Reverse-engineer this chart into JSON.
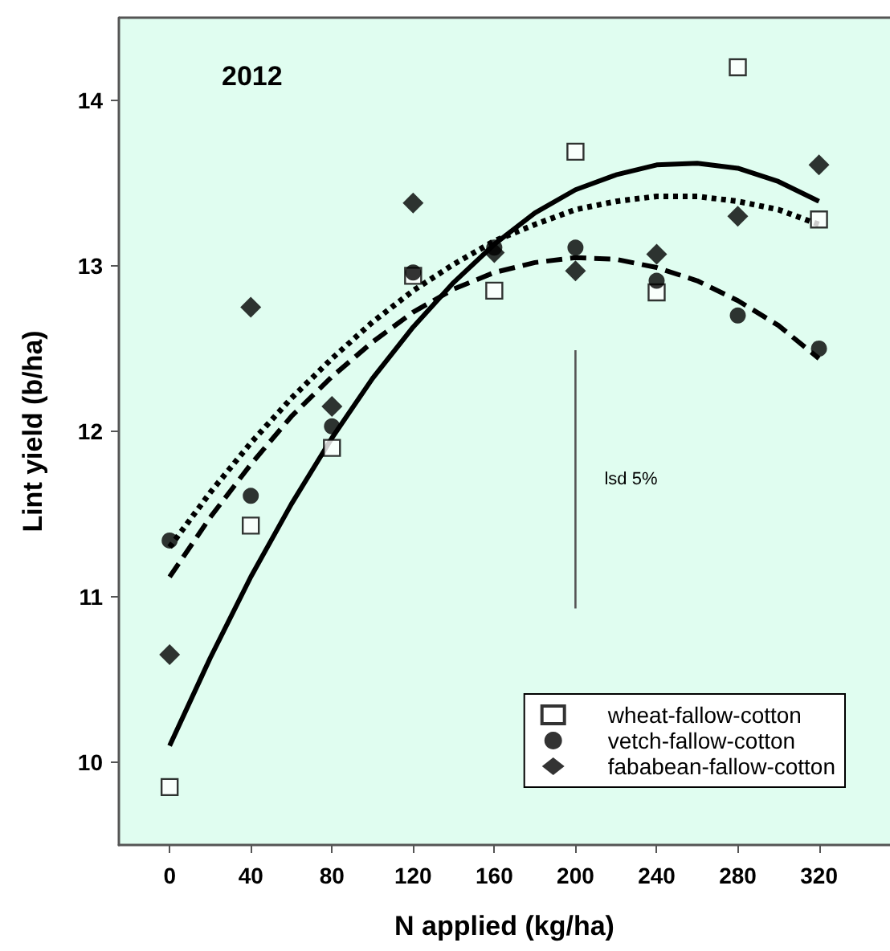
{
  "chart_data": {
    "type": "scatter",
    "title": "2012",
    "xlabel": "N applied (kg/ha)",
    "ylabel": "Lint yield (b/ha)",
    "xlim": [
      -25,
      355
    ],
    "xticks": [
      0,
      40,
      80,
      120,
      160,
      200,
      240,
      280,
      320
    ],
    "ylim": [
      9.5,
      14.5
    ],
    "yticks": [
      10,
      11,
      12,
      13,
      14
    ],
    "grid": false,
    "legend": "bottom right",
    "annotations": [
      {
        "text": "lsd 5%",
        "x": 200,
        "y": 11.71
      }
    ],
    "series": [
      {
        "name": "wheat-fallow-cotton",
        "marker": "square",
        "color": "#ffffff",
        "x": [
          0,
          40,
          80,
          120,
          160,
          200,
          240,
          280,
          320
        ],
        "values": [
          9.85,
          11.43,
          11.9,
          12.94,
          12.85,
          13.69,
          12.84,
          14.2,
          13.28
        ]
      },
      {
        "name": "vetch-fallow-cotton",
        "marker": "circle",
        "color": "#000000",
        "x": [
          0,
          40,
          80,
          120,
          160,
          200,
          240,
          280,
          320
        ],
        "values": [
          11.34,
          11.61,
          12.03,
          12.96,
          13.11,
          13.11,
          12.91,
          12.7,
          12.5
        ]
      },
      {
        "name": "fababean-fallow-cotton",
        "marker": "diamond",
        "color": "#000000",
        "x": [
          0,
          40,
          80,
          120,
          160,
          200,
          240,
          280,
          320
        ],
        "values": [
          10.65,
          12.75,
          12.15,
          13.38,
          13.08,
          12.97,
          13.07,
          13.3,
          13.61
        ]
      },
      {
        "type": "line",
        "marker": "none",
        "line_style": "solid",
        "color": "#000000",
        "x": [
          0,
          20,
          40,
          60,
          80,
          100,
          120,
          140,
          160,
          180,
          200,
          220,
          240,
          260,
          280,
          300,
          320
        ],
        "values": [
          10.1,
          10.63,
          11.12,
          11.56,
          11.96,
          12.32,
          12.63,
          12.9,
          13.13,
          13.32,
          13.46,
          13.55,
          13.61,
          13.62,
          13.59,
          13.51,
          13.39
        ]
      },
      {
        "type": "line",
        "marker": "none",
        "line_style": "dotted",
        "color": "#000000",
        "x": [
          0,
          20,
          40,
          60,
          80,
          100,
          120,
          140,
          160,
          180,
          200,
          220,
          240,
          260,
          280,
          300,
          320
        ],
        "values": [
          11.3,
          11.63,
          11.93,
          12.2,
          12.44,
          12.66,
          12.85,
          13.01,
          13.15,
          13.25,
          13.34,
          13.39,
          13.42,
          13.42,
          13.39,
          13.34,
          13.25
        ]
      },
      {
        "type": "line",
        "marker": "none",
        "line_style": "dashed",
        "color": "#000000",
        "x": [
          0,
          20,
          40,
          60,
          80,
          100,
          120,
          140,
          160,
          180,
          200,
          220,
          240,
          260,
          280,
          300,
          320
        ],
        "values": [
          11.12,
          11.48,
          11.8,
          12.09,
          12.33,
          12.54,
          12.72,
          12.86,
          12.96,
          13.02,
          13.05,
          13.04,
          12.99,
          12.91,
          12.79,
          12.64,
          12.44
        ]
      },
      {
        "type": "line",
        "marker": "none",
        "line_style": "solid",
        "color": "#555555",
        "x": [
          200,
          200
        ],
        "values": [
          10.93,
          12.49
        ]
      }
    ]
  }
}
